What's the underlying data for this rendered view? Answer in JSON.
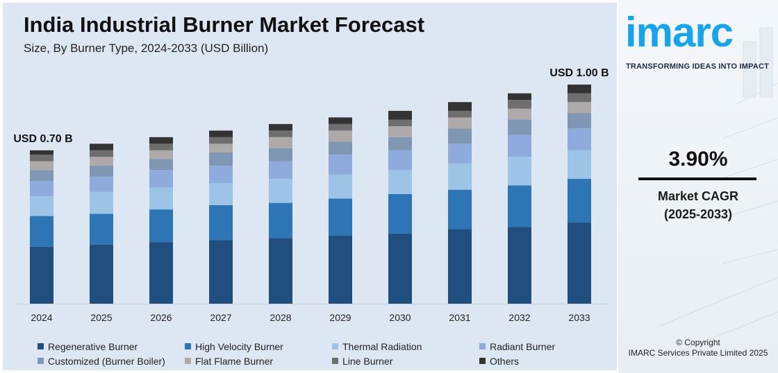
{
  "chart_data": {
    "type": "bar",
    "stacked": true,
    "title": "India Industrial Burner Market Forecast",
    "subtitle": "Size, By Burner Type, 2024-2033 (USD Billion)",
    "categories": [
      "2024",
      "2025",
      "2026",
      "2027",
      "2028",
      "2029",
      "2030",
      "2031",
      "2032",
      "2033"
    ],
    "totals": [
      0.7,
      0.73,
      0.76,
      0.79,
      0.82,
      0.85,
      0.88,
      0.92,
      0.96,
      1.0
    ],
    "series": [
      {
        "name": "Regenerative Burner",
        "color": "#1f4e7f",
        "values": [
          0.26,
          0.27,
          0.28,
          0.29,
          0.3,
          0.31,
          0.32,
          0.34,
          0.35,
          0.37
        ]
      },
      {
        "name": "High Velocity Burner",
        "color": "#2e75b6",
        "values": [
          0.14,
          0.14,
          0.15,
          0.16,
          0.16,
          0.17,
          0.18,
          0.18,
          0.19,
          0.2
        ]
      },
      {
        "name": "Thermal Radiation",
        "color": "#9dc3e6",
        "values": [
          0.09,
          0.1,
          0.1,
          0.1,
          0.11,
          0.11,
          0.11,
          0.12,
          0.13,
          0.13
        ]
      },
      {
        "name": "Radiant Burner",
        "color": "#8faadc",
        "values": [
          0.07,
          0.07,
          0.08,
          0.08,
          0.08,
          0.09,
          0.09,
          0.09,
          0.1,
          0.1
        ]
      },
      {
        "name": "Customized (Burner Boiler)",
        "color": "#7f97b2",
        "values": [
          0.05,
          0.05,
          0.05,
          0.06,
          0.06,
          0.06,
          0.06,
          0.07,
          0.07,
          0.07
        ]
      },
      {
        "name": "Flat Flame Burner",
        "color": "#aeaaaa",
        "values": [
          0.04,
          0.04,
          0.04,
          0.04,
          0.05,
          0.05,
          0.05,
          0.05,
          0.05,
          0.05
        ]
      },
      {
        "name": "Line Burner",
        "color": "#6e6e6e",
        "values": [
          0.03,
          0.03,
          0.03,
          0.03,
          0.03,
          0.03,
          0.03,
          0.03,
          0.04,
          0.04
        ]
      },
      {
        "name": "Others",
        "color": "#333333",
        "values": [
          0.02,
          0.03,
          0.03,
          0.03,
          0.03,
          0.03,
          0.04,
          0.04,
          0.03,
          0.04
        ]
      }
    ],
    "annotations": [
      {
        "category": "2024",
        "text": "USD 0.70 B"
      },
      {
        "category": "2033",
        "text": "USD 1.00 B"
      }
    ],
    "ylim": [
      0,
      1.0
    ],
    "grid": false,
    "legend": "bottom"
  },
  "brand": {
    "logo_text": "imarc",
    "tagline": "TRANSFORMING IDEAS INTO IMPACT",
    "accent": "#1aa3e8"
  },
  "cagr": {
    "value": "3.90%",
    "label_line1": "Market CAGR",
    "label_line2": "(2025-2033)"
  },
  "footer": {
    "line1": "© Copyright",
    "line2": "IMARC Services Private Limited 2025"
  }
}
